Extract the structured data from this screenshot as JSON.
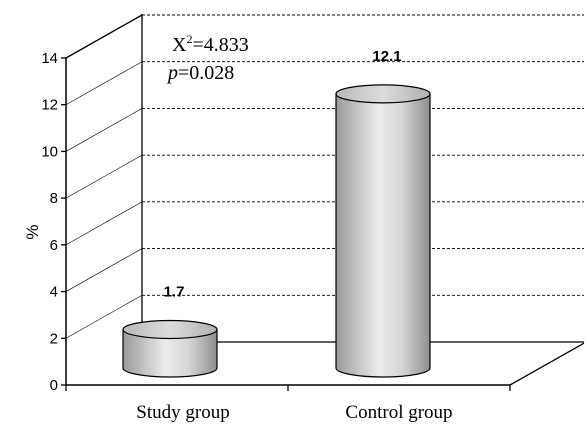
{
  "chart_data": {
    "type": "bar",
    "style": "3d-cylinder",
    "categories": [
      "Study group",
      "Control group"
    ],
    "values": [
      1.7,
      12.1
    ],
    "value_labels": [
      "1.7",
      "12.1"
    ],
    "ylabel": "%",
    "ylim": [
      0,
      14
    ],
    "yticks": [
      0,
      2,
      4,
      6,
      8,
      10,
      12,
      14
    ],
    "grid": "dashed horizontal on back wall",
    "annotation": {
      "chi_prefix": "X",
      "chi_sup": "2",
      "chi_value": "=4.833",
      "p_symbol": "p",
      "p_value": "=0.028"
    },
    "colors": {
      "bar_light": "#e8e8e8",
      "bar_dark": "#9a9a9a",
      "axis": "#000000",
      "background": "#ffffff"
    }
  }
}
